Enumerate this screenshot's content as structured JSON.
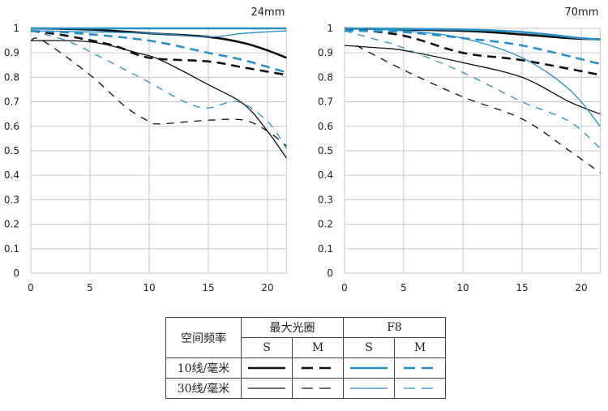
{
  "chart_data": [
    {
      "type": "line",
      "title": "24mm",
      "xlabel": "",
      "ylabel": "",
      "xlim": [
        0,
        21.6
      ],
      "ylim": [
        0,
        1
      ],
      "xticks": [
        "0",
        "5",
        "10",
        "15",
        "20"
      ],
      "yticks": [
        "0",
        "0.1",
        "0.2",
        "0.3",
        "0.4",
        "0.5",
        "0.6",
        "0.7",
        "0.8",
        "0.9",
        "1"
      ],
      "grid": true,
      "series": [
        {
          "name": "10线/毫米 最大光圈 S",
          "color": "#111111",
          "width": 2.6,
          "dash": false,
          "x": [
            0,
            5,
            10,
            15,
            18,
            20,
            21.6
          ],
          "y": [
            1.0,
            0.995,
            0.98,
            0.965,
            0.94,
            0.91,
            0.88
          ]
        },
        {
          "name": "10线/毫米 最大光圈 M",
          "color": "#111111",
          "width": 2.6,
          "dash": true,
          "x": [
            0,
            3,
            7,
            10,
            15,
            18,
            21.6
          ],
          "y": [
            0.99,
            0.97,
            0.93,
            0.88,
            0.865,
            0.84,
            0.81
          ]
        },
        {
          "name": "10线/毫米 F8 S",
          "color": "#2a8fc8",
          "width": 2.6,
          "dash": false,
          "x": [
            0,
            10,
            21.6
          ],
          "y": [
            1.0,
            1.0,
            1.0
          ]
        },
        {
          "name": "10线/毫米 F8 M",
          "color": "#2a8fc8",
          "width": 2.6,
          "dash": true,
          "x": [
            0,
            4,
            10,
            15,
            18,
            21.6
          ],
          "y": [
            0.99,
            0.98,
            0.95,
            0.9,
            0.87,
            0.82
          ]
        },
        {
          "name": "30线/毫米 最大光圈 S",
          "color": "#111111",
          "width": 1.3,
          "dash": false,
          "x": [
            0,
            5,
            9,
            11,
            15,
            18,
            20,
            21.6
          ],
          "y": [
            0.95,
            0.945,
            0.9,
            0.87,
            0.77,
            0.69,
            0.58,
            0.47
          ]
        },
        {
          "name": "30线/毫米 最大光圈 M",
          "color": "#111111",
          "width": 1.3,
          "dash": true,
          "x": [
            0,
            1,
            5,
            8,
            10,
            11,
            15,
            18,
            20,
            21.6
          ],
          "y": [
            0.95,
            0.95,
            0.81,
            0.68,
            0.62,
            0.61,
            0.625,
            0.625,
            0.58,
            0.52
          ]
        },
        {
          "name": "30线/毫米 F8 S",
          "color": "#2a8fc8",
          "width": 1.3,
          "dash": false,
          "x": [
            0,
            10,
            15,
            18,
            21.6
          ],
          "y": [
            0.99,
            0.98,
            0.965,
            0.98,
            0.99
          ]
        },
        {
          "name": "30线/毫米 F8 M",
          "color": "#2a8fc8",
          "width": 1.3,
          "dash": true,
          "x": [
            0,
            3,
            6,
            8,
            10,
            13,
            15,
            17.5,
            20,
            21.6
          ],
          "y": [
            0.99,
            0.95,
            0.88,
            0.83,
            0.78,
            0.7,
            0.675,
            0.7,
            0.62,
            0.51
          ]
        }
      ]
    },
    {
      "type": "line",
      "title": "70mm",
      "xlabel": "",
      "ylabel": "",
      "xlim": [
        0,
        21.6
      ],
      "ylim": [
        0,
        1
      ],
      "xticks": [
        "0",
        "5",
        "10",
        "15",
        "20"
      ],
      "yticks": [
        "0",
        "0.1",
        "0.2",
        "0.3",
        "0.4",
        "0.5",
        "0.6",
        "0.7",
        "0.8",
        "0.9",
        "1"
      ],
      "grid": true,
      "series": [
        {
          "name": "10线/毫米 最大光圈 S",
          "color": "#111111",
          "width": 2.6,
          "dash": false,
          "x": [
            0,
            10,
            15,
            19,
            21.6
          ],
          "y": [
            1.0,
            0.99,
            0.975,
            0.96,
            0.955
          ]
        },
        {
          "name": "10线/毫米 最大光圈 M",
          "color": "#111111",
          "width": 2.6,
          "dash": true,
          "x": [
            0,
            5,
            10,
            15,
            21.6
          ],
          "y": [
            1.0,
            0.97,
            0.9,
            0.87,
            0.81
          ]
        },
        {
          "name": "10线/毫米 F8 S",
          "color": "#2a8fc8",
          "width": 2.6,
          "dash": false,
          "x": [
            0,
            10,
            15,
            20,
            21.6
          ],
          "y": [
            1.0,
            0.995,
            0.985,
            0.96,
            0.955
          ]
        },
        {
          "name": "10线/毫米 F8 M",
          "color": "#2a8fc8",
          "width": 2.6,
          "dash": true,
          "x": [
            0,
            5,
            10,
            15,
            21.6
          ],
          "y": [
            0.99,
            0.985,
            0.96,
            0.93,
            0.855
          ]
        },
        {
          "name": "30线/毫米 最大光圈 S",
          "color": "#111111",
          "width": 1.3,
          "dash": false,
          "x": [
            0,
            3,
            5,
            10,
            15,
            19,
            21.6
          ],
          "y": [
            0.93,
            0.92,
            0.91,
            0.86,
            0.8,
            0.7,
            0.65
          ]
        },
        {
          "name": "30线/毫米 最大光圈 M",
          "color": "#111111",
          "width": 1.3,
          "dash": true,
          "x": [
            1,
            5,
            10,
            15,
            19,
            21.6
          ],
          "y": [
            0.93,
            0.83,
            0.72,
            0.63,
            0.5,
            0.41
          ]
        },
        {
          "name": "30线/毫米 F8 S",
          "color": "#2a8fc8",
          "width": 1.3,
          "dash": false,
          "x": [
            0,
            5,
            10,
            15,
            19,
            21.6
          ],
          "y": [
            1.0,
            0.99,
            0.96,
            0.88,
            0.75,
            0.6
          ]
        },
        {
          "name": "30线/毫米 F8 M",
          "color": "#2a8fc8",
          "width": 1.3,
          "dash": true,
          "x": [
            0,
            3,
            5,
            10,
            15,
            19,
            21.6
          ],
          "y": [
            0.99,
            0.95,
            0.92,
            0.82,
            0.7,
            0.62,
            0.51
          ]
        }
      ]
    }
  ],
  "legend": {
    "header_freq": "空间频率",
    "header_max": "最大光圈",
    "header_f8": "F8",
    "s": "S",
    "m": "M",
    "row10": "10线/毫米",
    "row30": "30线/毫米"
  }
}
